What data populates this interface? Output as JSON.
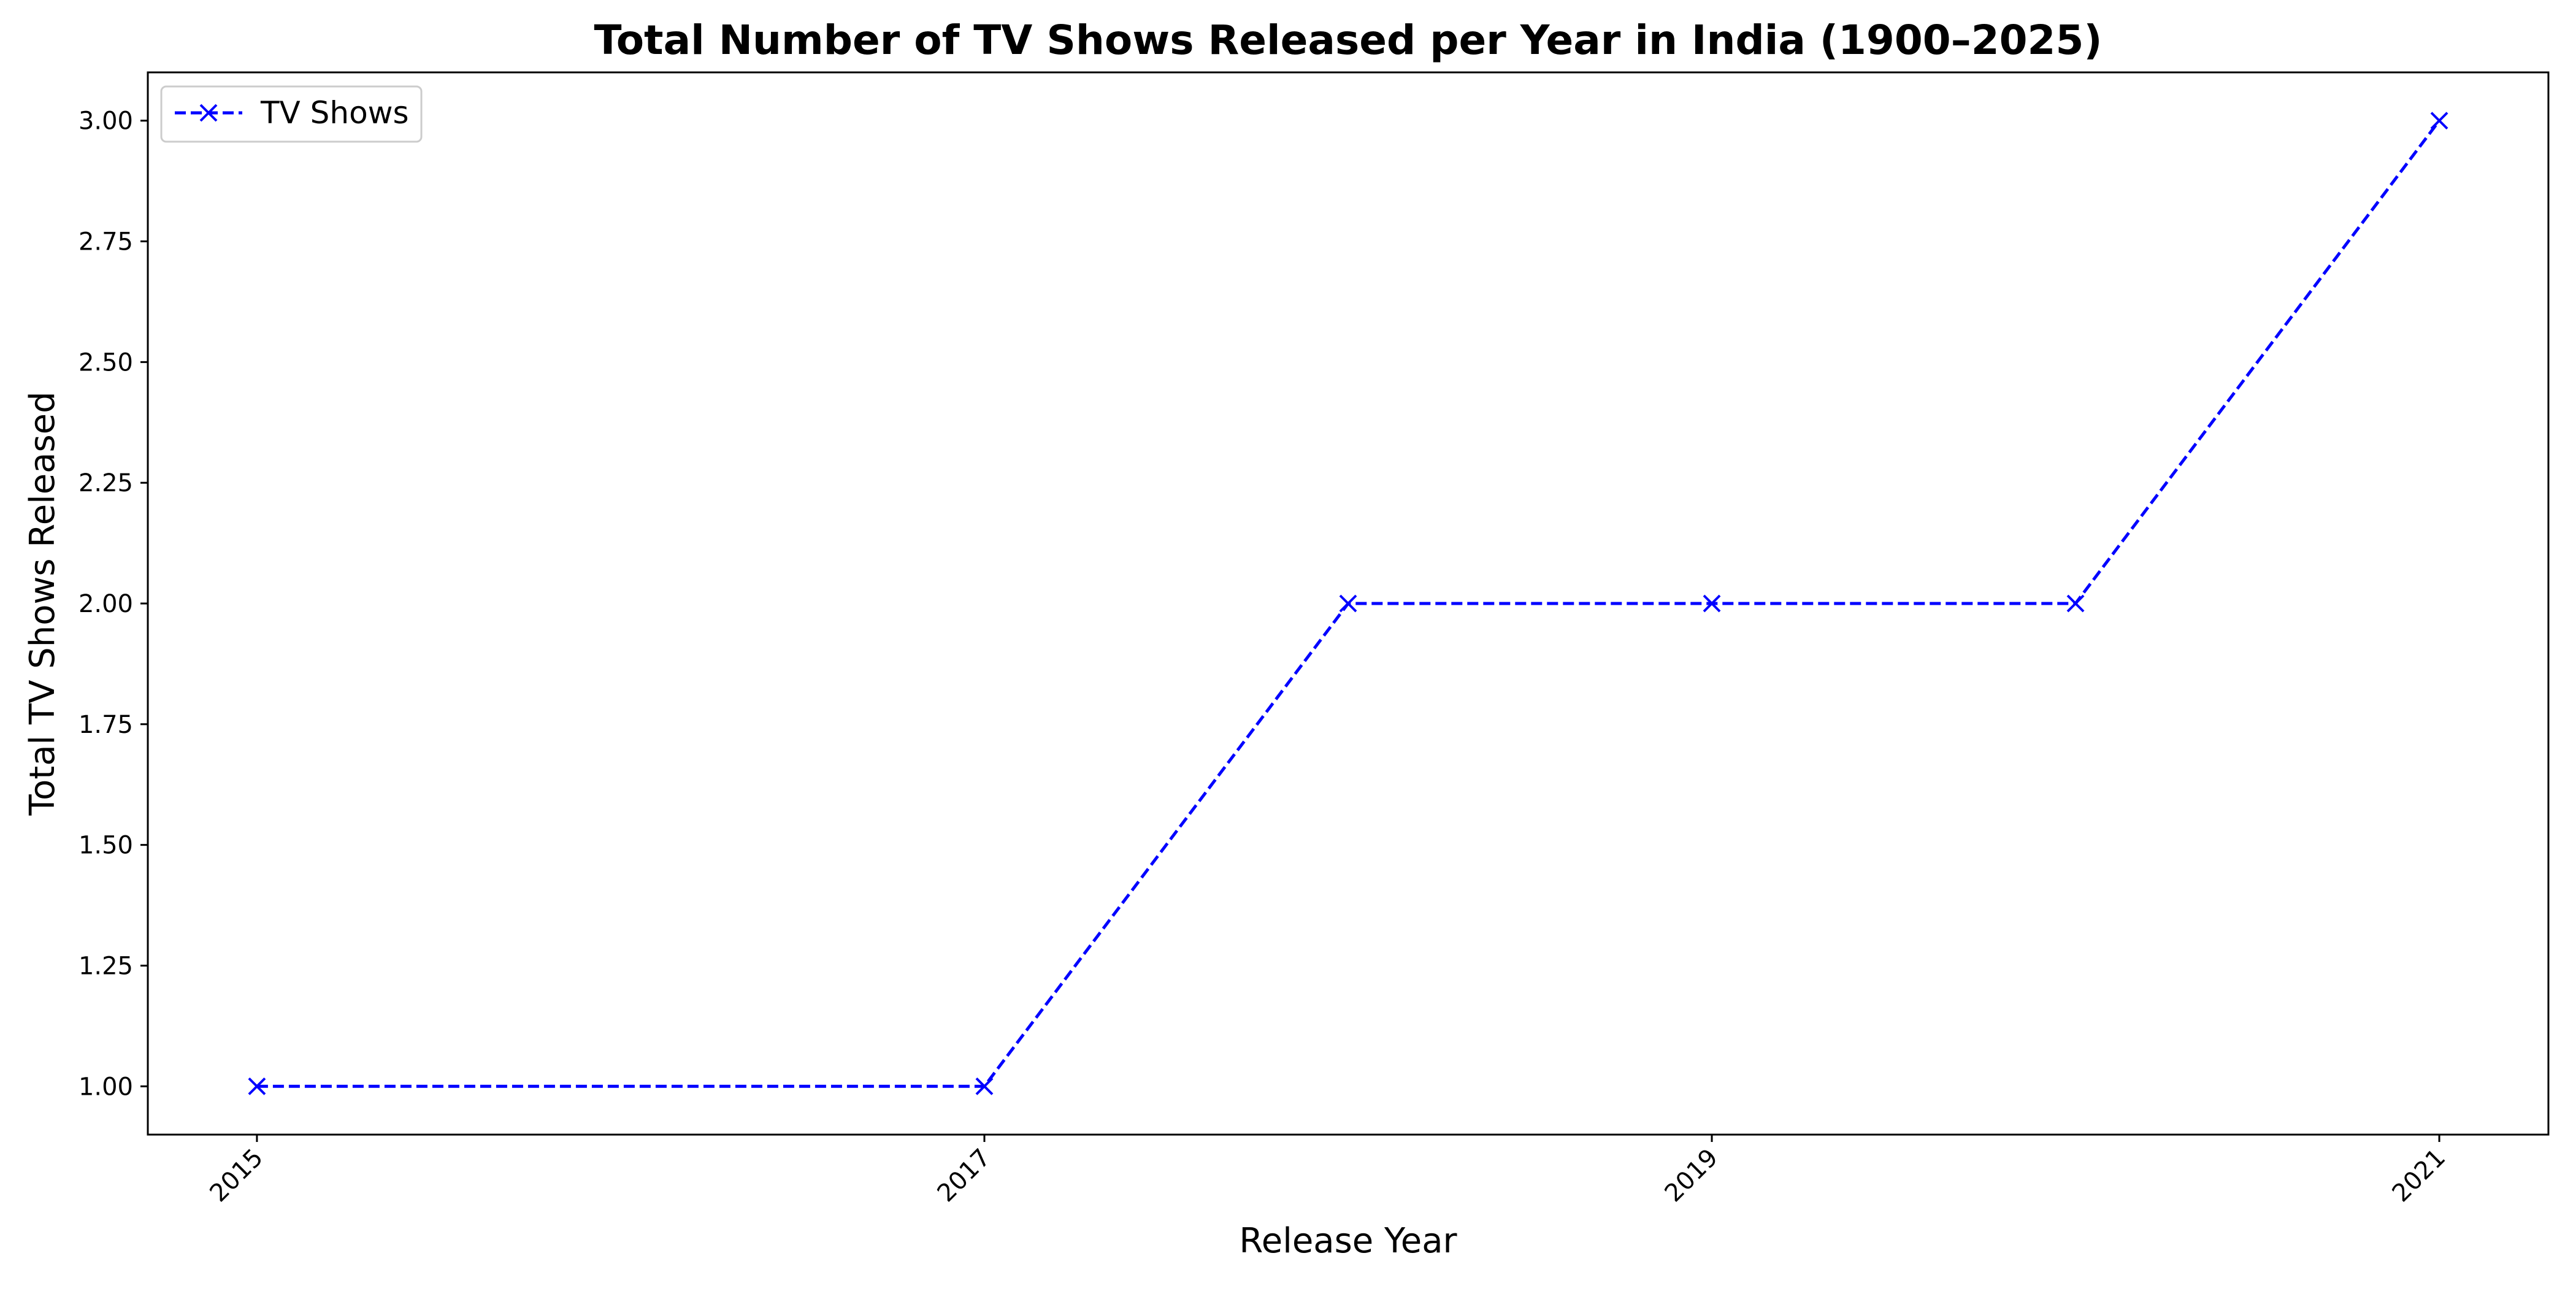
{
  "chart_data": {
    "type": "line",
    "title": "Total Number of TV Shows Released per Year in India (1900–2025)",
    "xlabel": "Release Year",
    "ylabel": "Total TV Shows Released",
    "x": [
      2015,
      2017,
      2018,
      2019,
      2020,
      2021
    ],
    "x_tick_labels": [
      "2015",
      "2017",
      "2019",
      "2021"
    ],
    "y_tick_labels": [
      "1.00",
      "1.25",
      "1.50",
      "1.75",
      "2.00",
      "2.25",
      "2.50",
      "2.75",
      "3.00"
    ],
    "xlim": [
      2014.7,
      2021.3
    ],
    "ylim": [
      0.9,
      3.1
    ],
    "grid": false,
    "legend_position": "top-left",
    "series": [
      {
        "name": "TV Shows",
        "values": [
          1,
          1,
          2,
          2,
          2,
          3
        ],
        "color": "#0000ff",
        "line_style": "dashed",
        "marker": "x"
      }
    ]
  }
}
